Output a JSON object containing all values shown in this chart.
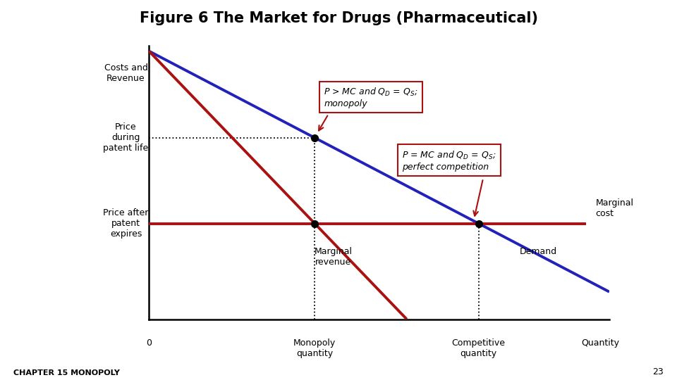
{
  "title": "Figure 6 The Market for Drugs (Pharmaceutical)",
  "title_fontsize": 15,
  "title_fontweight": "bold",
  "title_fontfamily": "sans-serif",
  "bg_color": "#ffffff",
  "ylabel_costs": "Costs and\nRevenue",
  "ylabel_price_patent": "Price\nduring\npatent life",
  "ylabel_price_after": "Price after\npatent\nexpires",
  "ylabel_mc": "Marginal\ncost",
  "xlabel_0": "0",
  "xlabel_mono": "Monopoly\nquantity",
  "xlabel_comp": "Competitive\nquantity",
  "xlabel_qty": "Quantity",
  "label_mr": "Marginal\nrevenue",
  "label_demand": "Demand",
  "footnote": "CHAPTER 15 MONOPOLY",
  "page_num": "23",
  "xlim": [
    0,
    10
  ],
  "ylim": [
    0,
    10
  ],
  "demand_x0": 0.0,
  "demand_y0": 9.8,
  "demand_x1": 10.0,
  "demand_y1": 1.0,
  "mr_x0": 0.0,
  "mr_y0": 9.8,
  "mr_x1": 5.6,
  "mr_y1": 0.0,
  "mc_x0": 0.0,
  "mc_x1": 9.5,
  "mc_y": 3.5,
  "demand_color": "#2222bb",
  "mr_color": "#aa1111",
  "mc_color": "#aa1111",
  "dot_color": "#000000",
  "box_edgecolor": "#aa1111",
  "box_facecolor": "#ffffff",
  "arrow_color": "#aa1111"
}
